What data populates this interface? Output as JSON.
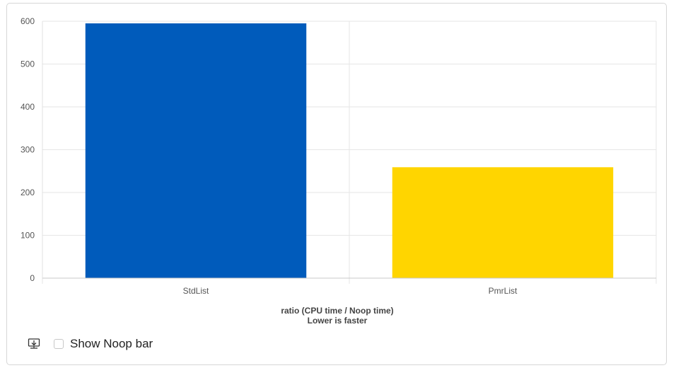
{
  "chart_data": {
    "type": "bar",
    "categories": [
      "StdList",
      "PmrList"
    ],
    "values": [
      595,
      259
    ],
    "colors": [
      "#005bbb",
      "#ffd500"
    ],
    "xlabel": "ratio (CPU time / Noop time)",
    "xlabel_sub": "Lower is faster",
    "ylim": [
      0,
      600
    ],
    "yticks": [
      0,
      100,
      200,
      300,
      400,
      500,
      600
    ],
    "grid": true
  },
  "controls": {
    "download_icon": "download-icon",
    "show_noop_label": "Show Noop bar",
    "show_noop_checked": false
  }
}
